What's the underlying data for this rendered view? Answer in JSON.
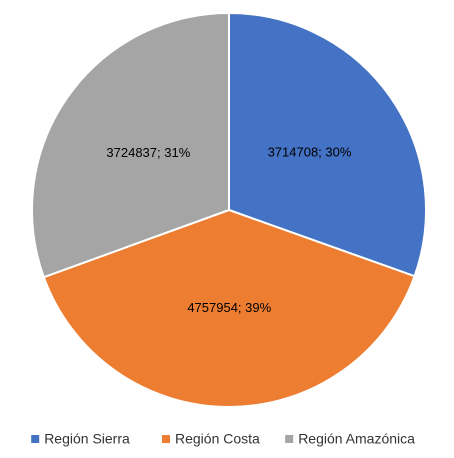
{
  "chart_data": {
    "type": "pie",
    "categories": [
      "Región Sierra",
      "Región Costa",
      "Región Amazónica"
    ],
    "values": [
      3714708,
      4757954,
      3724837
    ],
    "value_labels": [
      "3714708;  30%",
      "4757954;  39%",
      "3724837;  31%"
    ],
    "colors": [
      "#4472c4",
      "#ed7d31",
      "#a5a5a5"
    ],
    "legend": "bottom"
  }
}
